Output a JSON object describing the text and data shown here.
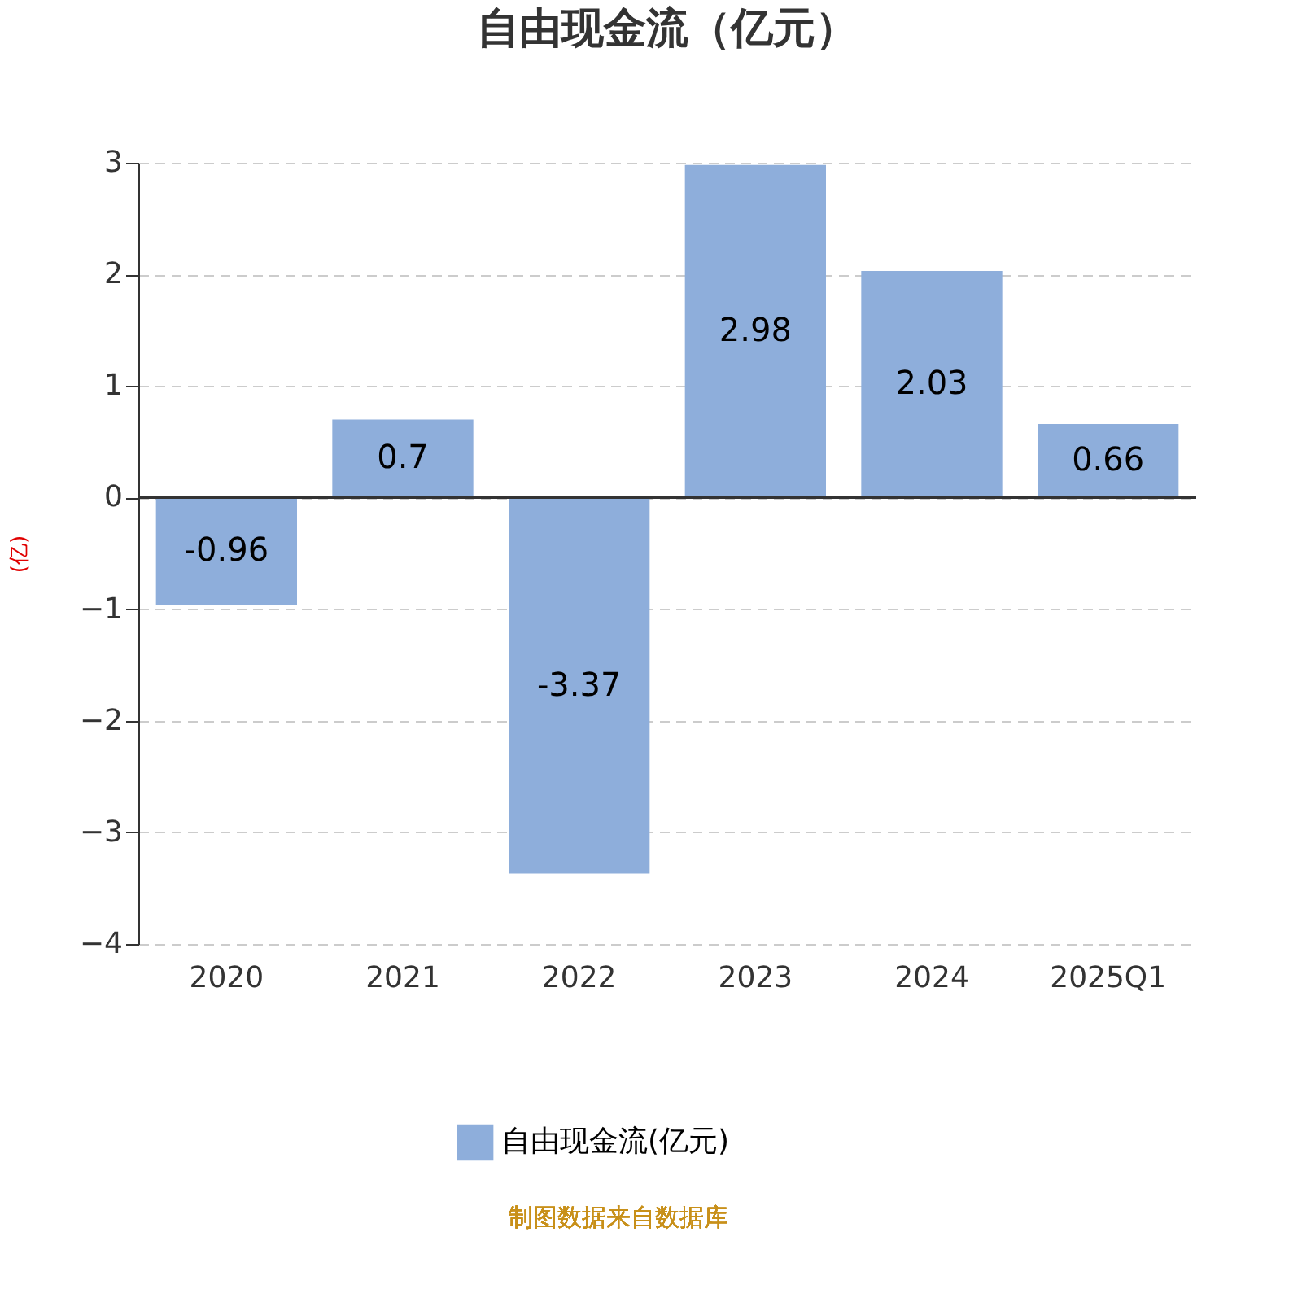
{
  "chart_data": {
    "type": "bar",
    "title": "自由现金流（亿元）",
    "ylabel": "(亿)",
    "categories": [
      "2020",
      "2021",
      "2022",
      "2023",
      "2024",
      "2025Q1"
    ],
    "series": [
      {
        "name": "自由现金流(亿元)",
        "color": "#8eaedb",
        "values": [
          -0.96,
          0.7,
          -3.37,
          2.98,
          2.03,
          0.66
        ]
      }
    ],
    "ylim": [
      -4,
      3
    ],
    "yticks": [
      -4,
      -3,
      -2,
      -1,
      0,
      1,
      2,
      3
    ],
    "grid": "y",
    "legend": "bottom",
    "data_labels": true,
    "annotations": [
      "制图数据来自数据库"
    ]
  }
}
